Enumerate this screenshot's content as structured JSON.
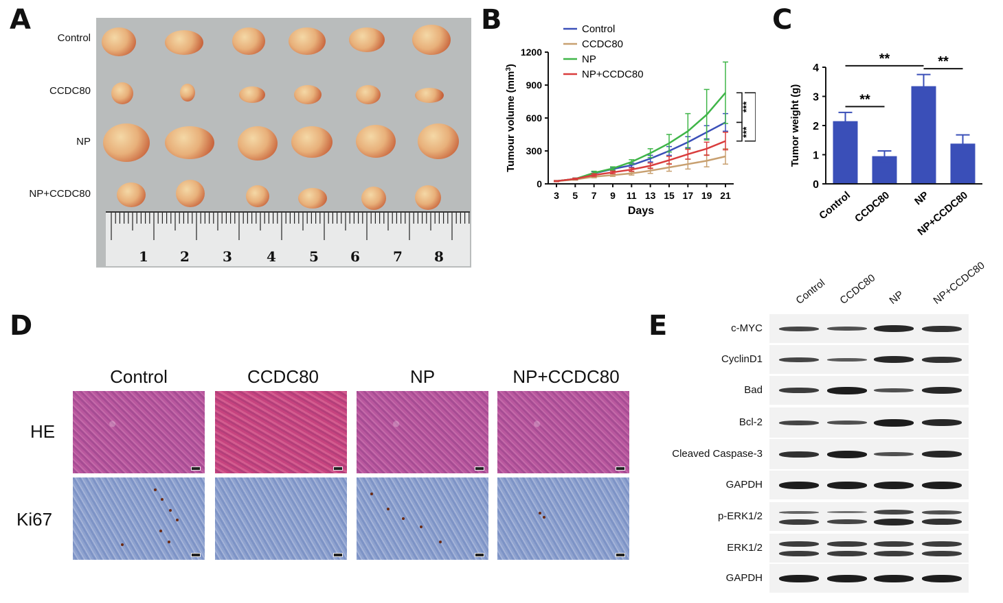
{
  "panels": {
    "a": "A",
    "b": "B",
    "c": "C",
    "d": "D",
    "e": "E"
  },
  "panelA": {
    "rows": [
      "Control",
      "CCDC80",
      "NP",
      "NP+CCDC80"
    ],
    "ruler": [
      "1",
      "2",
      "3",
      "4",
      "5",
      "6",
      "7",
      "8"
    ]
  },
  "chart_data": [
    {
      "type": "line",
      "xlabel": "Days",
      "ylabel": "Tumour volume (mm3)",
      "x": [
        3,
        5,
        7,
        9,
        11,
        13,
        15,
        17,
        19,
        21
      ],
      "ylim": [
        0,
        1200
      ],
      "yticks": [
        "0",
        "300",
        "600",
        "900",
        "1200"
      ],
      "series": [
        {
          "name": "Control",
          "color": "#3a4fb8",
          "values": [
            25,
            45,
            95,
            135,
            170,
            230,
            300,
            380,
            470,
            560
          ],
          "err": [
            5,
            8,
            15,
            15,
            20,
            30,
            40,
            50,
            60,
            80
          ]
        },
        {
          "name": "CCDC80",
          "color": "#c8a070",
          "values": [
            25,
            40,
            65,
            80,
            95,
            120,
            150,
            180,
            210,
            250
          ],
          "err": [
            5,
            6,
            10,
            12,
            15,
            25,
            35,
            45,
            55,
            70
          ]
        },
        {
          "name": "NP",
          "color": "#3fb548",
          "values": [
            25,
            45,
            100,
            140,
            200,
            280,
            370,
            480,
            630,
            830
          ],
          "err": [
            5,
            8,
            15,
            15,
            20,
            40,
            80,
            160,
            230,
            280
          ]
        },
        {
          "name": "NP+CCDC80",
          "color": "#d93c3c",
          "values": [
            25,
            45,
            80,
            105,
            130,
            165,
            215,
            270,
            320,
            390
          ],
          "err": [
            5,
            7,
            12,
            12,
            15,
            25,
            35,
            45,
            60,
            80
          ]
        }
      ],
      "sig": [
        "***",
        "***",
        "***"
      ]
    },
    {
      "type": "bar",
      "ylabel": "Tumor weight (g)",
      "categories": [
        "Control",
        "CCDC80",
        "NP",
        "NP+CCDC80"
      ],
      "values": [
        2.15,
        0.95,
        3.35,
        1.38
      ],
      "err": [
        0.3,
        0.18,
        0.4,
        0.3
      ],
      "ylim": [
        0,
        4
      ],
      "yticks": [
        "0",
        "1",
        "2",
        "3",
        "4"
      ],
      "sig": [
        "**",
        "**",
        "**"
      ]
    }
  ],
  "panelD": {
    "groups": [
      "Control",
      "CCDC80",
      "NP",
      "NP+CCDC80"
    ],
    "rows": [
      "HE",
      "Ki67"
    ]
  },
  "panelE": {
    "lanes": [
      "Control",
      "CCDC80",
      "NP",
      "NP+CCDC80"
    ],
    "proteins": [
      "c-MYC",
      "CyclinD1",
      "Bad",
      "Bcl-2",
      "Cleaved Caspase-3",
      "GAPDH",
      "p-ERK1/2",
      "ERK1/2",
      "GAPDH"
    ]
  },
  "colors": {
    "bar": "#3a4fb8",
    "line": "#111111"
  }
}
